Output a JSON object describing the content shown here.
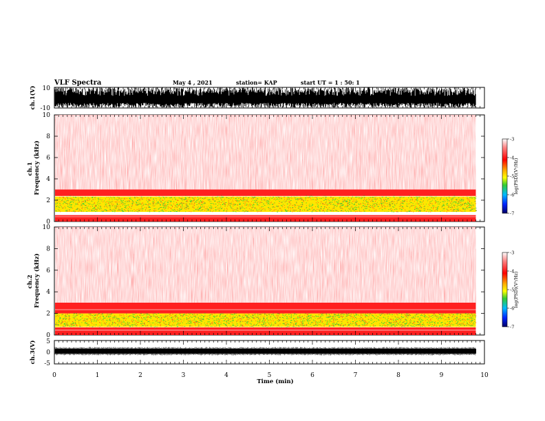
{
  "header": {
    "title": "VLF Spectra",
    "date": "May 4 , 2021",
    "station": "station= KAP",
    "start": "start UT = 1 : 50: 1"
  },
  "chart_data": [
    {
      "type": "line",
      "name": "ch1-waveform",
      "ylabel": "ch.1(V)",
      "ylim": [
        -10,
        10
      ],
      "yticks": [
        "10",
        "-10"
      ],
      "xlim": [
        0,
        10
      ]
    },
    {
      "type": "heatmap",
      "name": "ch1-spectrogram",
      "ylabel": "ch.1\nFrequency (kHz)",
      "ylim": [
        0,
        10
      ],
      "yticks": [
        "0",
        "2",
        "4",
        "6",
        "8",
        "10"
      ],
      "xlim": [
        0,
        9.8
      ],
      "colorbar": {
        "label": "log(PSD)(V²/Hz)",
        "range": [
          -7,
          -3
        ],
        "ticks": [
          "-3",
          "-4",
          "-5",
          "-6",
          "-7"
        ]
      },
      "bands": [
        {
          "range": [
            0.0,
            0.6
          ],
          "level": "red"
        },
        {
          "range": [
            0.9,
            2.4
          ],
          "level": "yellow-green"
        },
        {
          "range": [
            2.4,
            3.0
          ],
          "level": "red"
        },
        {
          "range": [
            3.0,
            10.0
          ],
          "level": "light-red"
        }
      ]
    },
    {
      "type": "heatmap",
      "name": "ch2-spectrogram",
      "ylabel": "ch.2\nFrequency (kHz)",
      "ylim": [
        0,
        10
      ],
      "yticks": [
        "0",
        "2",
        "4",
        "6",
        "8",
        "10"
      ],
      "xlim": [
        0,
        9.8
      ],
      "colorbar": {
        "label": "log(PSD)(V²/Hz)",
        "range": [
          -7,
          -3
        ],
        "ticks": [
          "-3",
          "-4",
          "-5",
          "-6",
          "-7"
        ]
      },
      "bands": [
        {
          "range": [
            0.0,
            0.7
          ],
          "level": "red"
        },
        {
          "range": [
            0.7,
            2.0
          ],
          "level": "yellow-green"
        },
        {
          "range": [
            2.0,
            3.0
          ],
          "level": "red"
        },
        {
          "range": [
            3.0,
            10.0
          ],
          "level": "light-red"
        }
      ]
    },
    {
      "type": "line",
      "name": "ch3-waveform",
      "ylabel": "ch.3(V)",
      "ylim": [
        -5,
        5
      ],
      "yticks": [
        "5",
        "0",
        "-5"
      ],
      "xlim": [
        0,
        10
      ],
      "xlabel": "Time (min)",
      "xticks": [
        "0",
        "1",
        "2",
        "3",
        "4",
        "5",
        "6",
        "7",
        "8",
        "9",
        "10"
      ]
    }
  ],
  "colors": {
    "background": "#ffffff",
    "light_red": "#ff9a9a",
    "red": "#ff1a1a",
    "yellow": "#ffee00",
    "green": "#33cc33",
    "trace": "#000000"
  }
}
